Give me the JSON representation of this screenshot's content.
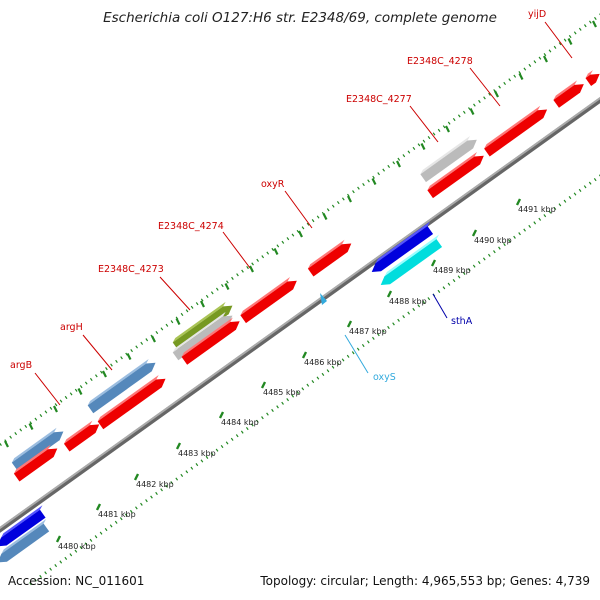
{
  "title": "Escherichia coli O127:H6 str. E2348/69, complete genome",
  "footer": {
    "accession": "Accession: NC_011601",
    "summary": "Topology: circular; Length: 4,965,553 bp; Genes: 4,739"
  },
  "scale_labels": [
    "4480 kbp",
    "4481 kbp",
    "4482 kbp",
    "4483 kbp",
    "4484 kbp",
    "4485 kbp",
    "4486 kbp",
    "4487 kbp",
    "4488 kbp",
    "4489 kbp",
    "4490 kbp",
    "4491 kbp"
  ],
  "gene_labels": [
    {
      "text": "argB",
      "color": "#cc0000"
    },
    {
      "text": "argH",
      "color": "#cc0000"
    },
    {
      "text": "E2348C_4273",
      "color": "#cc0000"
    },
    {
      "text": "E2348C_4274",
      "color": "#cc0000"
    },
    {
      "text": "oxyR",
      "color": "#cc0000"
    },
    {
      "text": "E2348C_4277",
      "color": "#cc0000"
    },
    {
      "text": "E2348C_4278",
      "color": "#cc0000"
    },
    {
      "text": "yijD",
      "color": "#cc0000"
    },
    {
      "text": "sthA",
      "color": "#0000aa"
    },
    {
      "text": "oxyS",
      "color": "#33aadd"
    }
  ],
  "colors": {
    "cds": "#ee0000",
    "cds_light": "#ff7777",
    "gene": "#5588bb",
    "gene_light": "#9bbde0",
    "misc": "#bbbbbb",
    "misc_light": "#e6e6e6",
    "other": "#779922",
    "other_light": "#aac455",
    "blue": "#0000dd",
    "blue_light": "#5555ff",
    "cyan": "#00dddd",
    "cyan_light": "#99ffff",
    "dots": "#228822",
    "backbone": "#888888"
  }
}
